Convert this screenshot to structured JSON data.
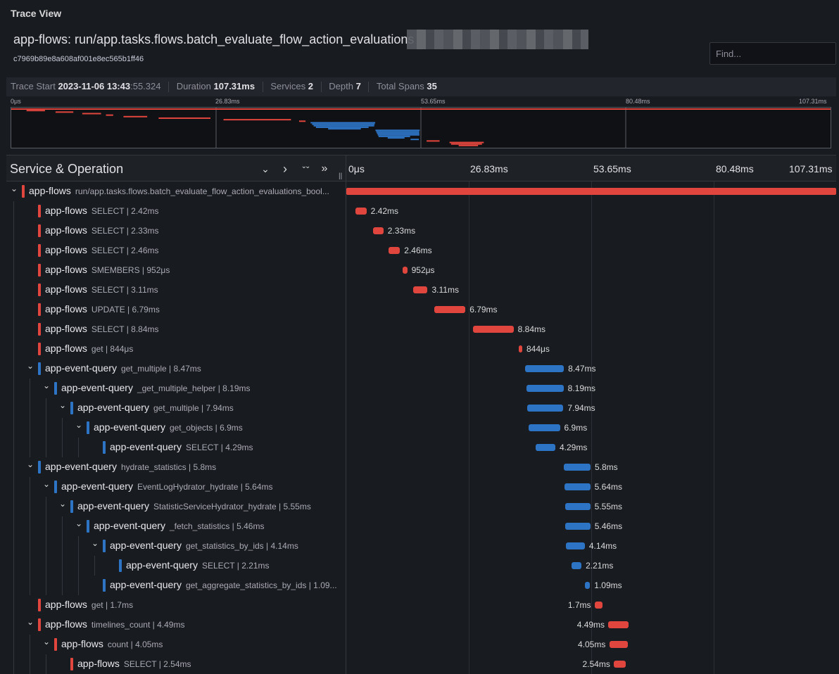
{
  "panel_title": "Trace View",
  "trace": {
    "title": "app-flows: run/app.tasks.flows.batch_evaluate_flow_action_evaluations",
    "id": "c7969b89e8a608af001e8ec565b1ff46"
  },
  "find": {
    "placeholder": "Find..."
  },
  "stats": {
    "trace_start_label": "Trace Start",
    "trace_start_date": "2023-11-06 13:43",
    "trace_start_secs": ":55.324",
    "duration_label": "Duration",
    "duration_value": "107.31ms",
    "services_label": "Services",
    "services_value": "2",
    "depth_label": "Depth",
    "depth_value": "7",
    "total_spans_label": "Total Spans",
    "total_spans_value": "35"
  },
  "minimap": {
    "ticks": [
      "0μs",
      "26.83ms",
      "53.65ms",
      "80.48ms",
      "107.31ms"
    ]
  },
  "header": {
    "title": "Service & Operation",
    "ticks": [
      "0μs",
      "26.83ms",
      "53.65ms",
      "80.48ms",
      "107.31ms"
    ],
    "buttons": {
      "collapse_one": "⌄",
      "expand_one": "›",
      "collapse_all": "⌄⌄",
      "expand_all": "»"
    }
  },
  "colors": {
    "app-flows": "#e0463d",
    "app-event-query": "#2d74c4"
  },
  "trace_total_ms": 107.31,
  "spans": [
    {
      "service": "app-flows",
      "operation": "run/app.tasks.flows.batch_evaluate_flow_action_evaluations_bool...",
      "depth": 0,
      "has_children": true,
      "start_ms": 0,
      "duration_ms": 107.31,
      "label": ""
    },
    {
      "service": "app-flows",
      "operation": "SELECT | 2.42ms",
      "depth": 1,
      "has_children": false,
      "start_ms": 2.0,
      "duration_ms": 2.42,
      "label": "2.42ms"
    },
    {
      "service": "app-flows",
      "operation": "SELECT | 2.33ms",
      "depth": 1,
      "has_children": false,
      "start_ms": 5.8,
      "duration_ms": 2.33,
      "label": "2.33ms"
    },
    {
      "service": "app-flows",
      "operation": "SELECT | 2.46ms",
      "depth": 1,
      "has_children": false,
      "start_ms": 9.3,
      "duration_ms": 2.46,
      "label": "2.46ms"
    },
    {
      "service": "app-flows",
      "operation": "SMEMBERS | 952μs",
      "depth": 1,
      "has_children": false,
      "start_ms": 12.4,
      "duration_ms": 0.952,
      "label": "952μs"
    },
    {
      "service": "app-flows",
      "operation": "SELECT | 3.11ms",
      "depth": 1,
      "has_children": false,
      "start_ms": 14.7,
      "duration_ms": 3.11,
      "label": "3.11ms"
    },
    {
      "service": "app-flows",
      "operation": "UPDATE | 6.79ms",
      "depth": 1,
      "has_children": false,
      "start_ms": 19.3,
      "duration_ms": 6.79,
      "label": "6.79ms"
    },
    {
      "service": "app-flows",
      "operation": "SELECT | 8.84ms",
      "depth": 1,
      "has_children": false,
      "start_ms": 27.8,
      "duration_ms": 8.84,
      "label": "8.84ms"
    },
    {
      "service": "app-flows",
      "operation": "get | 844μs",
      "depth": 1,
      "has_children": false,
      "start_ms": 37.7,
      "duration_ms": 0.844,
      "label": "844μs"
    },
    {
      "service": "app-event-query",
      "operation": "get_multiple | 8.47ms",
      "depth": 1,
      "has_children": true,
      "start_ms": 39.2,
      "duration_ms": 8.47,
      "label": "8.47ms"
    },
    {
      "service": "app-event-query",
      "operation": "_get_multiple_helper | 8.19ms",
      "depth": 2,
      "has_children": true,
      "start_ms": 39.4,
      "duration_ms": 8.19,
      "label": "8.19ms"
    },
    {
      "service": "app-event-query",
      "operation": "get_multiple | 7.94ms",
      "depth": 3,
      "has_children": true,
      "start_ms": 39.6,
      "duration_ms": 7.94,
      "label": "7.94ms"
    },
    {
      "service": "app-event-query",
      "operation": "get_objects | 6.9ms",
      "depth": 4,
      "has_children": true,
      "start_ms": 39.9,
      "duration_ms": 6.9,
      "label": "6.9ms"
    },
    {
      "service": "app-event-query",
      "operation": "SELECT | 4.29ms",
      "depth": 5,
      "has_children": false,
      "start_ms": 41.5,
      "duration_ms": 4.29,
      "label": "4.29ms"
    },
    {
      "service": "app-event-query",
      "operation": "hydrate_statistics | 5.8ms",
      "depth": 1,
      "has_children": true,
      "start_ms": 47.7,
      "duration_ms": 5.8,
      "label": "5.8ms"
    },
    {
      "service": "app-event-query",
      "operation": "EventLogHydrator_hydrate | 5.64ms",
      "depth": 2,
      "has_children": true,
      "start_ms": 47.8,
      "duration_ms": 5.64,
      "label": "5.64ms"
    },
    {
      "service": "app-event-query",
      "operation": "StatisticServiceHydrator_hydrate | 5.55ms",
      "depth": 3,
      "has_children": true,
      "start_ms": 47.9,
      "duration_ms": 5.55,
      "label": "5.55ms"
    },
    {
      "service": "app-event-query",
      "operation": "_fetch_statistics | 5.46ms",
      "depth": 4,
      "has_children": true,
      "start_ms": 48.0,
      "duration_ms": 5.46,
      "label": "5.46ms"
    },
    {
      "service": "app-event-query",
      "operation": "get_statistics_by_ids | 4.14ms",
      "depth": 5,
      "has_children": true,
      "start_ms": 48.1,
      "duration_ms": 4.14,
      "label": "4.14ms"
    },
    {
      "service": "app-event-query",
      "operation": "SELECT | 2.21ms",
      "depth": 6,
      "has_children": false,
      "start_ms": 49.3,
      "duration_ms": 2.21,
      "label": "2.21ms"
    },
    {
      "service": "app-event-query",
      "operation": "get_aggregate_statistics_by_ids | 1.09...",
      "depth": 5,
      "has_children": false,
      "start_ms": 52.3,
      "duration_ms": 1.09,
      "label": "1.09ms"
    },
    {
      "service": "app-flows",
      "operation": "get | 1.7ms",
      "depth": 1,
      "has_children": false,
      "start_ms": 54.4,
      "duration_ms": 1.7,
      "label": "1.7ms"
    },
    {
      "service": "app-flows",
      "operation": "timelines_count | 4.49ms",
      "depth": 1,
      "has_children": true,
      "start_ms": 57.4,
      "duration_ms": 4.49,
      "label": "4.49ms"
    },
    {
      "service": "app-flows",
      "operation": "count | 4.05ms",
      "depth": 2,
      "has_children": true,
      "start_ms": 57.6,
      "duration_ms": 4.05,
      "label": "4.05ms"
    },
    {
      "service": "app-flows",
      "operation": "SELECT | 2.54ms",
      "depth": 3,
      "has_children": false,
      "start_ms": 58.6,
      "duration_ms": 2.54,
      "label": "2.54ms"
    }
  ]
}
